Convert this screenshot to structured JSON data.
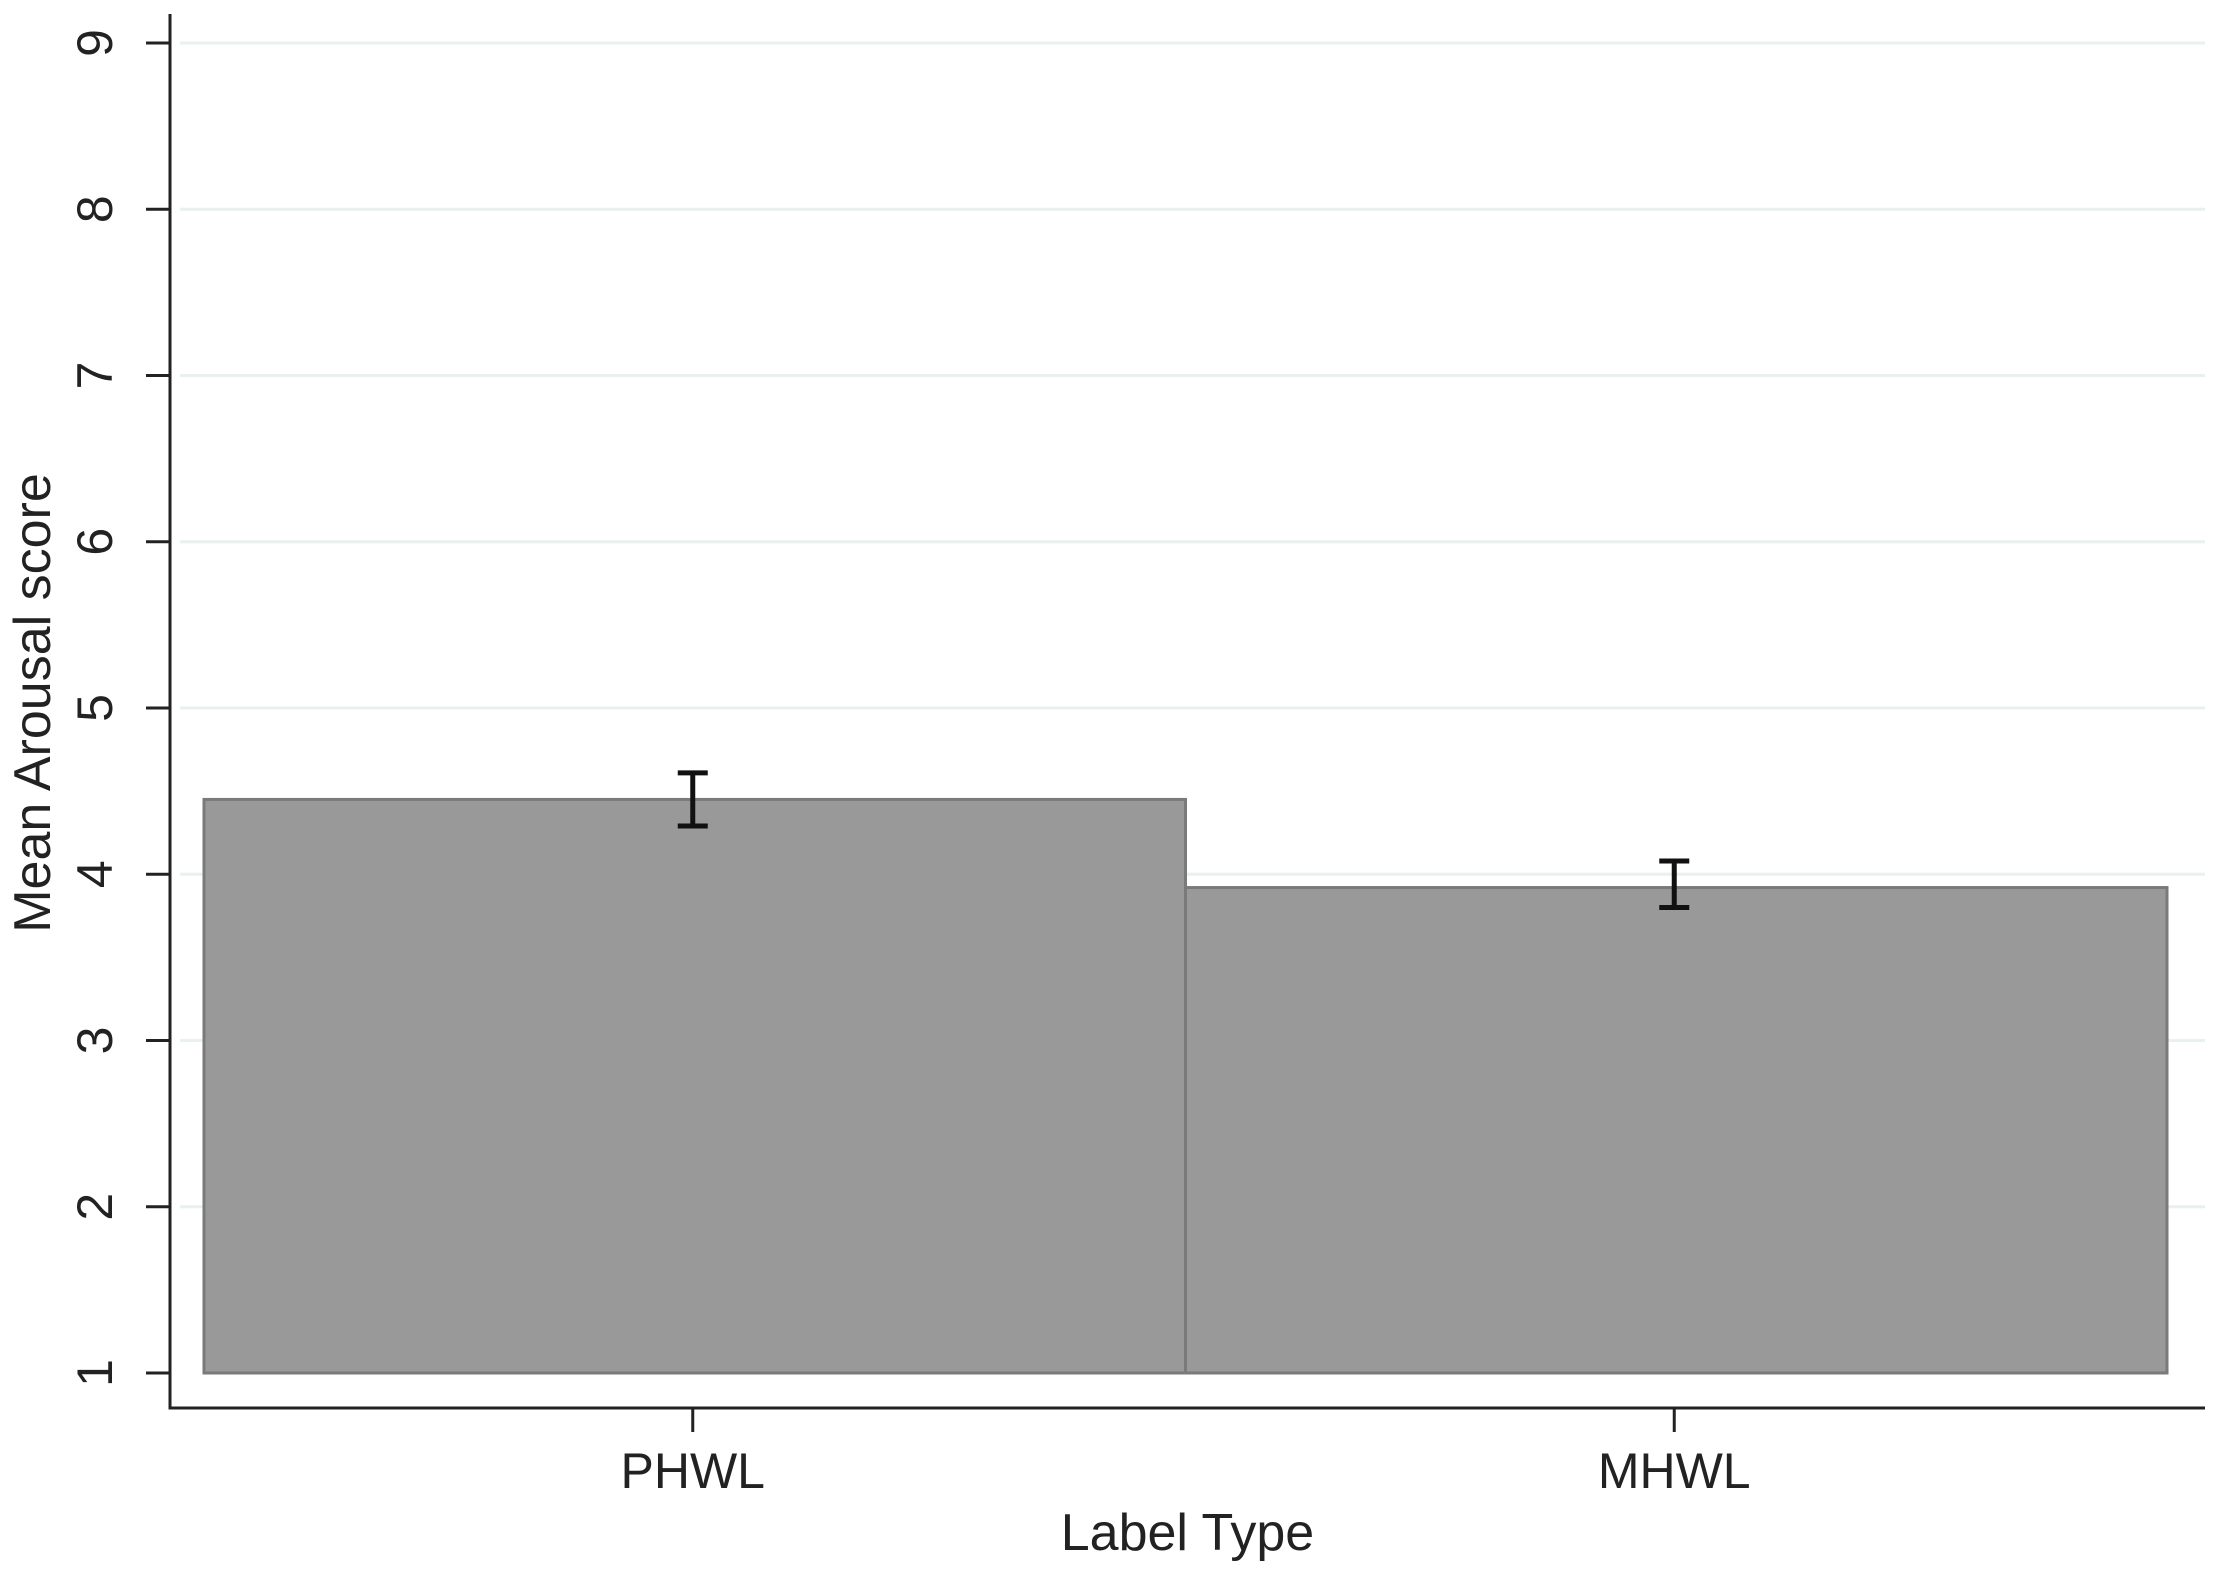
{
  "chart_data": {
    "type": "bar",
    "xlabel": "Label Type",
    "ylabel": "Mean Arousal score",
    "categories": [
      "PHWL",
      "MHWL"
    ],
    "values": [
      4.45,
      3.92
    ],
    "error_bars": [
      {
        "low": 4.29,
        "high": 4.61
      },
      {
        "low": 3.8,
        "high": 4.08
      }
    ],
    "base_value": 1,
    "ylim": [
      1,
      9
    ],
    "yticks": [
      1,
      2,
      3,
      4,
      5,
      6,
      7,
      8,
      9
    ],
    "y_tick_labels_rotated": true,
    "grid": true,
    "legend": "none",
    "colors": {
      "bar_fill": "#999999",
      "bar_edge": "#7a7a7a",
      "grid": "#e8f0f0",
      "axis": "#222222",
      "error_bar": "#111111"
    }
  }
}
